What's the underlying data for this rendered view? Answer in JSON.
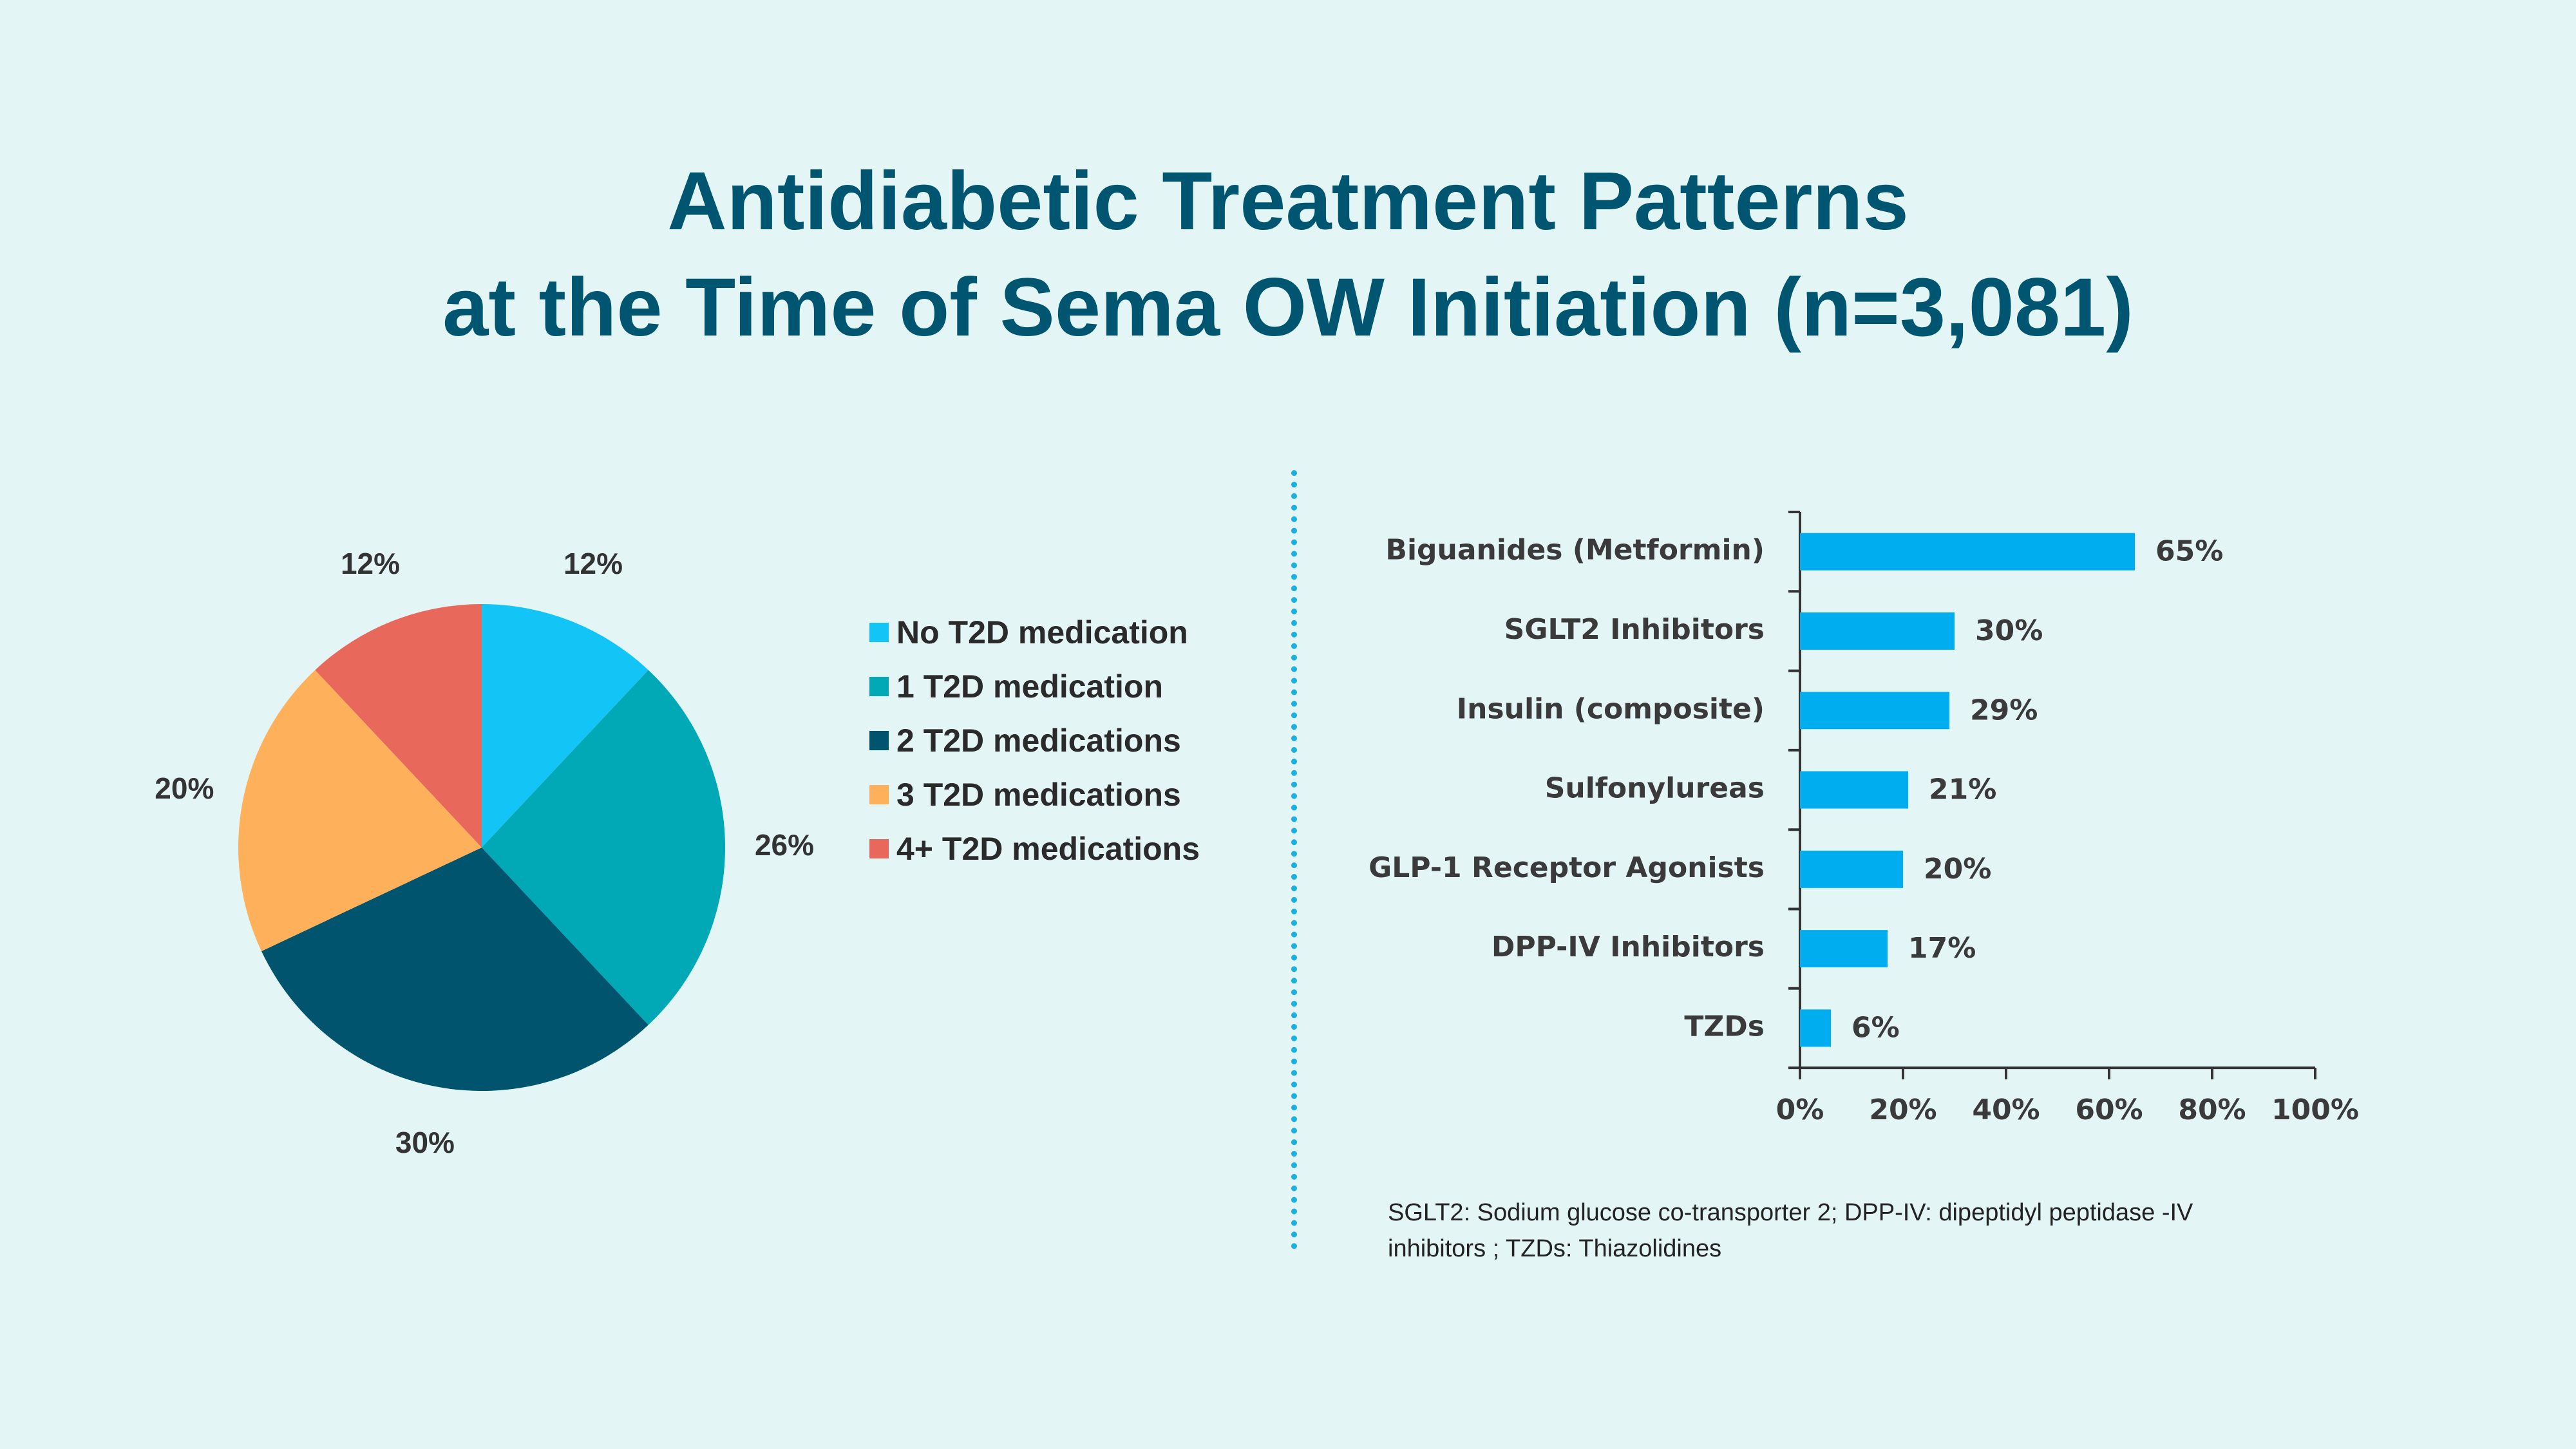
{
  "title": {
    "line1": "Antidiabetic Treatment Patterns",
    "line2": "at the Time of Sema OW Initiation (n=3,081)"
  },
  "colors": {
    "background": "#e3f5f5",
    "title": "#005570",
    "bar": "#00aeef",
    "divider": "#1ab0e0"
  },
  "chart_data": [
    {
      "type": "pie",
      "title": "",
      "slices": [
        {
          "label": "No T2D medication",
          "value": 12,
          "display": "12%",
          "color": "#12c5f6"
        },
        {
          "label": "1 T2D medication",
          "value": 26,
          "display": "26%",
          "color": "#00a9b5"
        },
        {
          "label": "2 T2D medications",
          "value": 30,
          "display": "30%",
          "color": "#00546e"
        },
        {
          "label": "3 T2D medications",
          "value": 20,
          "display": "20%",
          "color": "#ffb05b"
        },
        {
          "label": "4+ T2D medications",
          "value": 12,
          "display": "12%",
          "color": "#e8695b"
        }
      ],
      "legend_position": "right"
    },
    {
      "type": "bar",
      "orientation": "horizontal",
      "categories": [
        "Biguanides (Metformin)",
        "SGLT2 Inhibitors",
        "Insulin (composite)",
        "Sulfonylureas",
        "GLP-1 Receptor Agonists",
        "DPP-IV Inhibitors",
        "TZDs"
      ],
      "values": [
        65,
        30,
        29,
        21,
        20,
        17,
        6
      ],
      "value_labels": [
        "65%",
        "30%",
        "29%",
        "21%",
        "20%",
        "17%",
        "6%"
      ],
      "xlim": [
        0,
        100
      ],
      "xticks": [
        "0%",
        "20%",
        "40%",
        "60%",
        "80%",
        "100%"
      ],
      "xlabel": "",
      "ylabel": ""
    }
  ],
  "footnote": {
    "line1": "SGLT2: Sodium glucose co-transporter 2; DPP-IV: dipeptidyl peptidase -IV",
    "line2": "inhibitors ; TZDs: Thiazolidines"
  }
}
